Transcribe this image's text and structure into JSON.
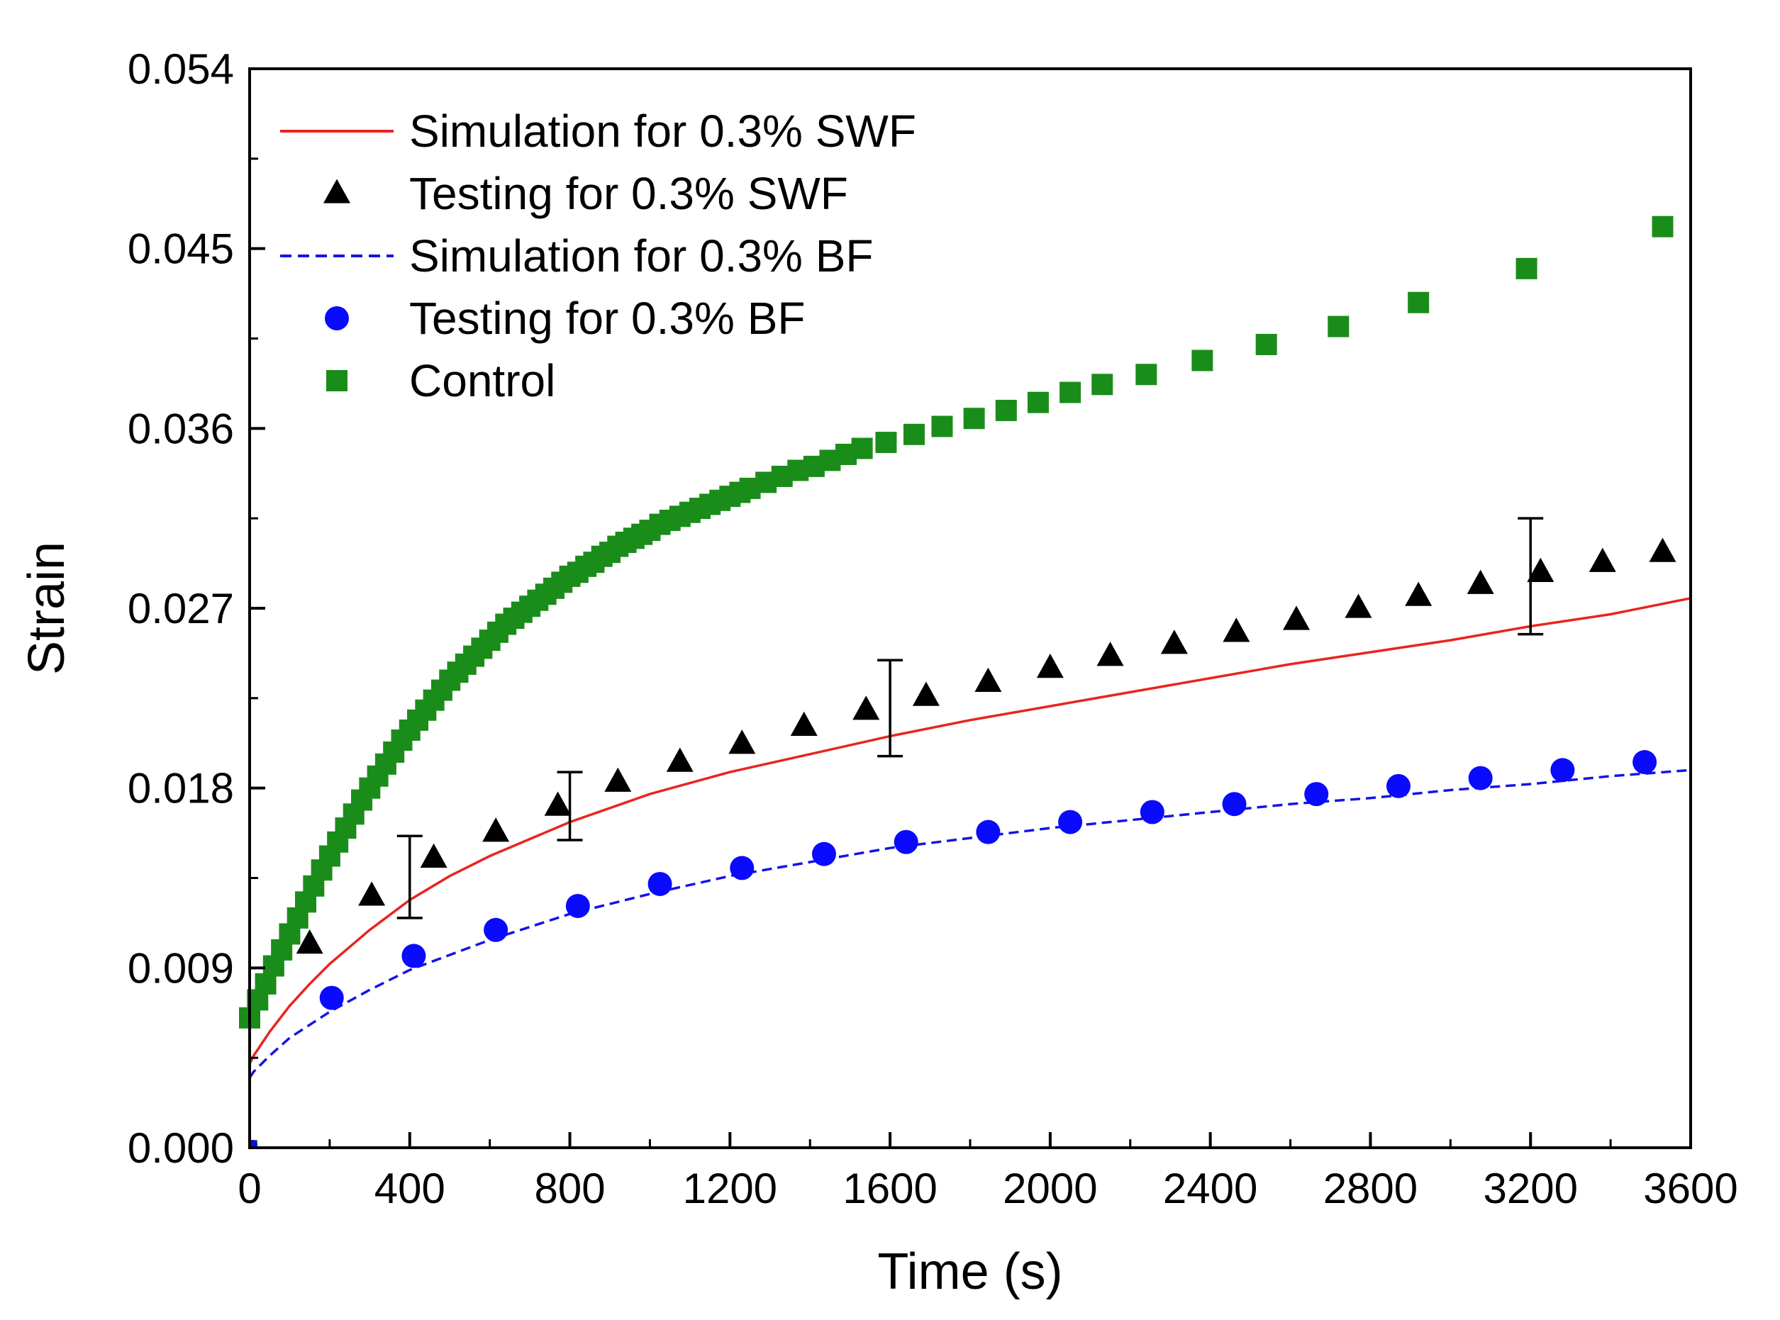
{
  "chart_data": {
    "type": "scatter",
    "xlabel": "Time (s)",
    "ylabel": "Strain",
    "xlim": [
      0,
      3600
    ],
    "ylim": [
      0,
      0.054
    ],
    "xticks": [
      0,
      400,
      800,
      1200,
      1600,
      2000,
      2400,
      2800,
      3200,
      3600
    ],
    "xtick_labels": [
      "0",
      "400",
      "800",
      "1200",
      "1600",
      "2000",
      "2400",
      "2800",
      "3200",
      "3600"
    ],
    "yticks": [
      0,
      0.009,
      0.018,
      0.027,
      0.036,
      0.045,
      0.054
    ],
    "ytick_labels": [
      "0.000",
      "0.009",
      "0.018",
      "0.027",
      "0.036",
      "0.045",
      "0.054"
    ],
    "legend_position": "top-left",
    "series": [
      {
        "name": "Simulation for 0.3% SWF",
        "kind": "line",
        "style": "solid",
        "color": "#e8251f",
        "x": [
          0,
          10,
          50,
          100,
          150,
          200,
          300,
          400,
          500,
          600,
          800,
          1000,
          1200,
          1400,
          1600,
          1800,
          2000,
          2200,
          2400,
          2600,
          2800,
          3000,
          3200,
          3400,
          3600
        ],
        "y": [
          0.0042,
          0.0046,
          0.0058,
          0.0071,
          0.0082,
          0.0092,
          0.0109,
          0.0124,
          0.0136,
          0.0146,
          0.0163,
          0.0177,
          0.0188,
          0.0197,
          0.0206,
          0.0214,
          0.0221,
          0.0228,
          0.0235,
          0.0242,
          0.0248,
          0.0254,
          0.0261,
          0.0267,
          0.0275
        ]
      },
      {
        "name": "Testing for 0.3% SWF",
        "kind": "scatter",
        "marker": "triangle",
        "color": "#000000",
        "x": [
          150,
          305,
          460,
          615,
          770,
          920,
          1075,
          1230,
          1385,
          1540,
          1690,
          1845,
          2000,
          2150,
          2310,
          2465,
          2615,
          2770,
          2920,
          3075,
          3225,
          3380,
          3530
        ],
        "y": [
          0.0102,
          0.0126,
          0.0145,
          0.0158,
          0.0171,
          0.0183,
          0.0193,
          0.0202,
          0.0211,
          0.0219,
          0.0226,
          0.0233,
          0.024,
          0.0246,
          0.0252,
          0.0258,
          0.0264,
          0.027,
          0.0276,
          0.0282,
          0.0288,
          0.0293,
          0.0298
        ]
      },
      {
        "name": "Simulation for 0.3% BF",
        "kind": "line",
        "style": "dashed",
        "color": "#1414e6",
        "x": [
          0,
          10,
          50,
          100,
          200,
          300,
          400,
          600,
          800,
          1000,
          1200,
          1400,
          1600,
          1800,
          2000,
          2200,
          2400,
          2600,
          2800,
          3000,
          3200,
          3400,
          3600
        ],
        "y": [
          0.0035,
          0.0038,
          0.0046,
          0.0055,
          0.0068,
          0.0079,
          0.0089,
          0.0104,
          0.0117,
          0.0127,
          0.0136,
          0.0143,
          0.015,
          0.0155,
          0.016,
          0.0164,
          0.0168,
          0.0172,
          0.0175,
          0.0179,
          0.0182,
          0.0186,
          0.0189
        ]
      },
      {
        "name": "Testing for 0.3% BF",
        "kind": "scatter",
        "marker": "circle",
        "color": "#0a0aff",
        "x": [
          205,
          410,
          615,
          820,
          1025,
          1230,
          1435,
          1640,
          1845,
          2050,
          2255,
          2460,
          2665,
          2870,
          3075,
          3280,
          3485
        ],
        "y": [
          0.0075,
          0.0096,
          0.0109,
          0.0121,
          0.0132,
          0.014,
          0.0147,
          0.0153,
          0.0158,
          0.0163,
          0.0168,
          0.0172,
          0.0177,
          0.0181,
          0.0185,
          0.0189,
          0.0193
        ]
      },
      {
        "name": "Control",
        "kind": "scatter",
        "marker": "square",
        "color": "#1a8c1a",
        "x": [
          0,
          20,
          40,
          60,
          80,
          100,
          120,
          140,
          160,
          180,
          200,
          220,
          240,
          260,
          280,
          300,
          320,
          340,
          360,
          380,
          400,
          420,
          440,
          460,
          480,
          500,
          520,
          540,
          560,
          580,
          600,
          620,
          640,
          660,
          680,
          700,
          720,
          740,
          760,
          780,
          800,
          820,
          840,
          860,
          880,
          900,
          920,
          940,
          960,
          980,
          1000,
          1025,
          1050,
          1075,
          1100,
          1125,
          1150,
          1175,
          1200,
          1225,
          1250,
          1290,
          1330,
          1370,
          1410,
          1450,
          1490,
          1530,
          1590,
          1660,
          1730,
          1810,
          1890,
          1970,
          2050,
          2130,
          2240,
          2380,
          2540,
          2720,
          2920,
          3190,
          3530
        ],
        "y": [
          0.0065,
          0.0074,
          0.0082,
          0.0091,
          0.0099,
          0.0107,
          0.0115,
          0.0123,
          0.0131,
          0.0139,
          0.0146,
          0.0153,
          0.016,
          0.0167,
          0.0174,
          0.018,
          0.0186,
          0.0192,
          0.0198,
          0.0204,
          0.0209,
          0.0214,
          0.0219,
          0.0224,
          0.0229,
          0.0234,
          0.0238,
          0.0242,
          0.0246,
          0.025,
          0.0254,
          0.0258,
          0.0262,
          0.0265,
          0.0268,
          0.0271,
          0.0274,
          0.0277,
          0.028,
          0.0283,
          0.0286,
          0.0288,
          0.0291,
          0.0293,
          0.0296,
          0.0298,
          0.0301,
          0.0303,
          0.0305,
          0.0307,
          0.0309,
          0.0312,
          0.0314,
          0.0316,
          0.0318,
          0.032,
          0.0322,
          0.0324,
          0.0326,
          0.0328,
          0.033,
          0.0333,
          0.0336,
          0.0339,
          0.0341,
          0.0344,
          0.0347,
          0.035,
          0.0353,
          0.0357,
          0.0361,
          0.0365,
          0.0369,
          0.0373,
          0.0378,
          0.0382,
          0.0387,
          0.0394,
          0.0402,
          0.0411,
          0.0423,
          0.044,
          0.0461
        ]
      }
    ],
    "error_bars": [
      {
        "series": "Testing for 0.3% SWF",
        "x": 400,
        "y_low": 0.0115,
        "y_high": 0.0156
      },
      {
        "series": "Testing for 0.3% SWF",
        "x": 800,
        "y_low": 0.0154,
        "y_high": 0.0188
      },
      {
        "series": "Testing for 0.3% SWF",
        "x": 1600,
        "y_low": 0.0196,
        "y_high": 0.0244
      },
      {
        "series": "Testing for 0.3% SWF",
        "x": 3200,
        "y_low": 0.0257,
        "y_high": 0.0315
      }
    ],
    "origin_markers": [
      {
        "series": "Control",
        "x": 0,
        "y": 0.0
      },
      {
        "series": "Testing for 0.3% SWF",
        "x": 0,
        "y": 0.0
      },
      {
        "series": "Testing for 0.3% BF",
        "x": 0,
        "y": 0.0
      }
    ]
  }
}
